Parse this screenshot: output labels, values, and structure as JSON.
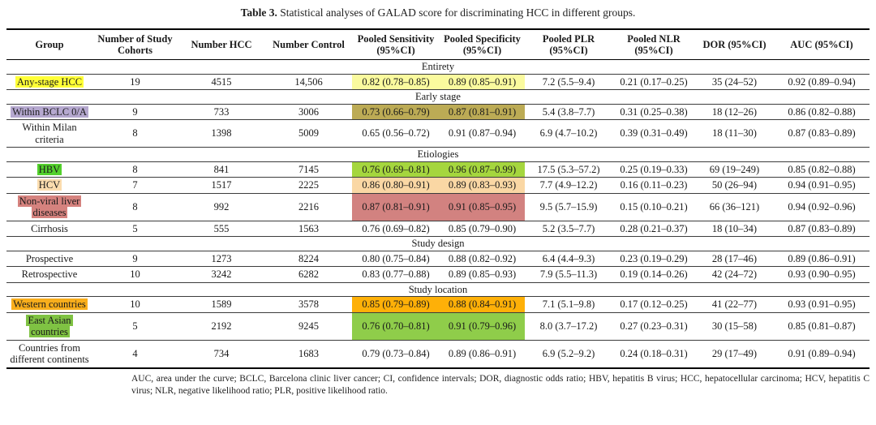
{
  "title": {
    "label": "Table 3.",
    "text": "Statistical analyses of GALAD score for discriminating HCC in different groups."
  },
  "table": {
    "columns": [
      "Group",
      "Number of Study Cohorts",
      "Number HCC",
      "Number Control",
      "Pooled Sensitivity (95%CI)",
      "Pooled Specificity (95%CI)",
      "Pooled PLR (95%CI)",
      "Pooled NLR (95%CI)",
      "DOR (95%CI)",
      "AUC (95%CI)"
    ],
    "rows": [
      {
        "type": "section",
        "label": "Entirety"
      },
      {
        "type": "data",
        "group": "Any-stage HCC",
        "group_highlight": "#FFFF36",
        "cell_highlight": "#FAFA9E",
        "cohorts": "19",
        "hcc": "4515",
        "control": "14,506",
        "sens": "0.82 (0.78–0.85)",
        "spec": "0.89 (0.85–0.91)",
        "plr": "7.2 (5.5–9.4)",
        "nlr": "0.21 (0.17–0.25)",
        "dor": "35 (24–52)",
        "auc": "0.92 (0.89–0.94)"
      },
      {
        "type": "section",
        "label": "Early stage"
      },
      {
        "type": "data",
        "group": "Within BCLC 0/A",
        "group_highlight": "#B5A8CF",
        "cell_highlight": "#BCAB55",
        "cohorts": "9",
        "hcc": "733",
        "control": "3006",
        "sens": "0.73 (0.66–0.79)",
        "spec": "0.87 (0.81–0.91)",
        "plr": "5.4 (3.8–7.7)",
        "nlr": "0.31 (0.25–0.38)",
        "dor": "18 (12–26)",
        "auc": "0.86 (0.82–0.88)"
      },
      {
        "type": "data",
        "group": "Within Milan criteria",
        "group_highlight": null,
        "cell_highlight": null,
        "cohorts": "8",
        "hcc": "1398",
        "control": "5009",
        "sens": "0.65 (0.56–0.72)",
        "spec": "0.91 (0.87–0.94)",
        "plr": "6.9 (4.7–10.2)",
        "nlr": "0.39 (0.31–0.49)",
        "dor": "18 (11–30)",
        "auc": "0.87 (0.83–0.89)"
      },
      {
        "type": "section",
        "label": "Etiologies"
      },
      {
        "type": "data",
        "group": "HBV",
        "group_highlight": "#53D02C",
        "cell_highlight": "#A5D63E",
        "cohorts": "8",
        "hcc": "841",
        "control": "7145",
        "sens": "0.76 (0.69–0.81)",
        "spec": "0.96 (0.87–0.99)",
        "plr": "17.5 (5.3–57.2)",
        "nlr": "0.25 (0.19–0.33)",
        "dor": "69 (19–249)",
        "auc": "0.85 (0.82–0.88)"
      },
      {
        "type": "data",
        "group": "HCV",
        "group_highlight": "#FBDCAE",
        "cell_highlight": "#FAD7A4",
        "cohorts": "7",
        "hcc": "1517",
        "control": "2225",
        "sens": "0.86 (0.80–0.91)",
        "spec": "0.89 (0.83–0.93)",
        "plr": "7.7 (4.9–12.2)",
        "nlr": "0.16 (0.11–0.23)",
        "dor": "50 (26–94)",
        "auc": "0.94 (0.91–0.95)"
      },
      {
        "type": "data",
        "group": "Non-viral liver diseases",
        "group_highlight": "#D5827E",
        "cell_highlight": "#D28280",
        "cohorts": "8",
        "hcc": "992",
        "control": "2216",
        "sens": "0.87 (0.81–0.91)",
        "spec": "0.91 (0.85–0.95)",
        "plr": "9.5 (5.7–15.9)",
        "nlr": "0.15 (0.10–0.21)",
        "dor": "66 (36–121)",
        "auc": "0.94 (0.92–0.96)"
      },
      {
        "type": "data",
        "group": "Cirrhosis",
        "group_highlight": null,
        "cell_highlight": null,
        "cohorts": "5",
        "hcc": "555",
        "control": "1563",
        "sens": "0.76 (0.69–0.82)",
        "spec": "0.85 (0.79–0.90)",
        "plr": "5.2 (3.5–7.7)",
        "nlr": "0.28 (0.21–0.37)",
        "dor": "18 (10–34)",
        "auc": "0.87 (0.83–0.89)"
      },
      {
        "type": "section",
        "label": "Study design"
      },
      {
        "type": "data",
        "group": "Prospective",
        "group_highlight": null,
        "cell_highlight": null,
        "cohorts": "9",
        "hcc": "1273",
        "control": "8224",
        "sens": "0.80 (0.75–0.84)",
        "spec": "0.88 (0.82–0.92)",
        "plr": "6.4 (4.4–9.3)",
        "nlr": "0.23 (0.19–0.29)",
        "dor": "28 (17–46)",
        "auc": "0.89 (0.86–0.91)"
      },
      {
        "type": "data",
        "group": "Retrospective",
        "group_highlight": null,
        "cell_highlight": null,
        "cohorts": "10",
        "hcc": "3242",
        "control": "6282",
        "sens": "0.83 (0.77–0.88)",
        "spec": "0.89 (0.85–0.93)",
        "plr": "7.9 (5.5–11.3)",
        "nlr": "0.19 (0.14–0.26)",
        "dor": "42 (24–72)",
        "auc": "0.93 (0.90–0.95)"
      },
      {
        "type": "section",
        "label": "Study location"
      },
      {
        "type": "data",
        "group": "Western countries",
        "group_highlight": "#F9AE1C",
        "cell_highlight": "#FEB008",
        "cohorts": "10",
        "hcc": "1589",
        "control": "3578",
        "sens": "0.85 (0.79–0.89)",
        "spec": "0.88 (0.84–0.91)",
        "plr": "7.1 (5.1–9.8)",
        "nlr": "0.17 (0.12–0.25)",
        "dor": "41 (22–77)",
        "auc": "0.93 (0.91–0.95)"
      },
      {
        "type": "data",
        "group": "East Asian countries",
        "group_highlight": "#7FC243",
        "cell_highlight": "#8FCD4A",
        "cohorts": "5",
        "hcc": "2192",
        "control": "9245",
        "sens": "0.76 (0.70–0.81)",
        "spec": "0.91 (0.79–0.96)",
        "plr": "8.0 (3.7–17.2)",
        "nlr": "0.27 (0.23–0.31)",
        "dor": "30 (15–58)",
        "auc": "0.85 (0.81–0.87)"
      },
      {
        "type": "data",
        "group": "Countries from different continents",
        "group_highlight": null,
        "cell_highlight": null,
        "cohorts": "4",
        "hcc": "734",
        "control": "1683",
        "sens": "0.79 (0.73–0.84)",
        "spec": "0.89 (0.86–0.91)",
        "plr": "6.9 (5.2–9.2)",
        "nlr": "0.24 (0.18–0.31)",
        "dor": "29 (17–49)",
        "auc": "0.91 (0.89–0.94)"
      }
    ]
  },
  "footnote": "AUC, area under the curve; BCLC, Barcelona clinic liver cancer; CI, confidence intervals; DOR, diagnostic odds ratio; HBV, hepatitis B virus; HCC, hepatocellular carcinoma; HCV, hepatitis C virus; NLR, negative likelihood ratio; PLR, positive likelihood ratio."
}
